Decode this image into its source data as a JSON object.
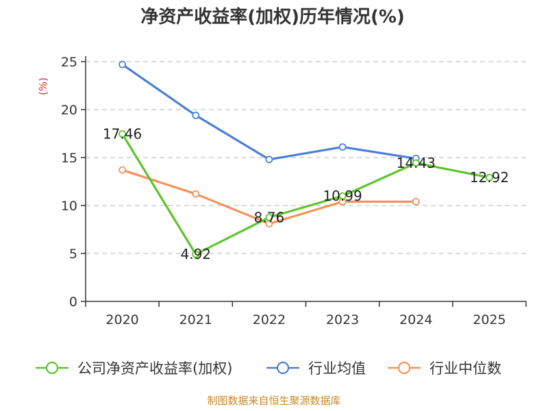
{
  "chart_data": {
    "type": "line",
    "title": "净资产收益率(加权)历年情况(%)",
    "ylabel": "(%)",
    "xlabel": "",
    "categories": [
      "2020",
      "2021",
      "2022",
      "2023",
      "2024",
      "2025"
    ],
    "ylim": [
      0,
      25
    ],
    "yticks": [
      0,
      5,
      10,
      15,
      20,
      25
    ],
    "grid": true,
    "legend_position": "bottom",
    "series": [
      {
        "name": "公司净资产收益率(加权)",
        "color": "#5cc42b",
        "values": [
          17.46,
          4.92,
          8.76,
          10.99,
          14.43,
          12.92
        ],
        "labels": [
          "17.46",
          "4.92",
          "8.76",
          "10.99",
          "14.43",
          "12.92"
        ]
      },
      {
        "name": "行业均值",
        "color": "#4a7fd8",
        "values": [
          24.7,
          19.4,
          14.8,
          16.1,
          14.9,
          null
        ]
      },
      {
        "name": "行业中位数",
        "color": "#f4915a",
        "values": [
          13.7,
          11.2,
          8.1,
          10.4,
          10.4,
          null
        ]
      }
    ]
  },
  "footer": {
    "source": "制图数据来自恒生聚源数据库"
  }
}
